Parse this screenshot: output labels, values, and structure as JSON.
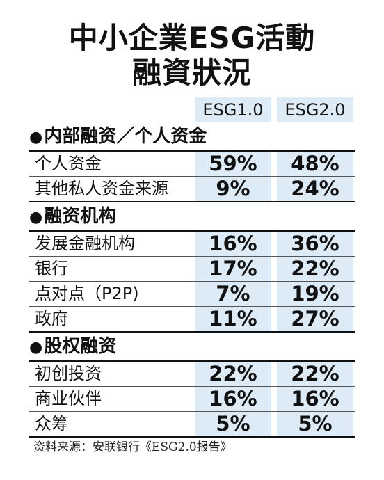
{
  "chart_data": {
    "type": "table",
    "title_lines": [
      "中小企業ESG活動",
      "融資狀況"
    ],
    "columns": [
      "ESG1.0",
      "ESG2.0"
    ],
    "sections": [
      {
        "name": "内部融资／个人资金",
        "rows": [
          {
            "label": "个人资金",
            "values": [
              "59%",
              "48%"
            ]
          },
          {
            "label": "其他私人资金来源",
            "values": [
              "9%",
              "24%"
            ]
          }
        ]
      },
      {
        "name": "融资机构",
        "rows": [
          {
            "label": "发展金融机构",
            "values": [
              "16%",
              "36%"
            ]
          },
          {
            "label": "银行",
            "values": [
              "17%",
              "22%"
            ]
          },
          {
            "label": "点对点（P2P)",
            "values": [
              "7%",
              "19%"
            ]
          },
          {
            "label": "政府",
            "values": [
              "11%",
              "27%"
            ]
          }
        ]
      },
      {
        "name": "股权融资",
        "rows": [
          {
            "label": "初创投资",
            "values": [
              "22%",
              "22%"
            ]
          },
          {
            "label": "商业伙伴",
            "values": [
              "16%",
              "16%"
            ]
          },
          {
            "label": "众筹",
            "values": [
              "5%",
              "5%"
            ]
          }
        ]
      }
    ],
    "source": "资料来源：安联银行《ESG2.0报告》"
  },
  "colors": {
    "highlight": "#dcebf6",
    "text": "#111111"
  }
}
